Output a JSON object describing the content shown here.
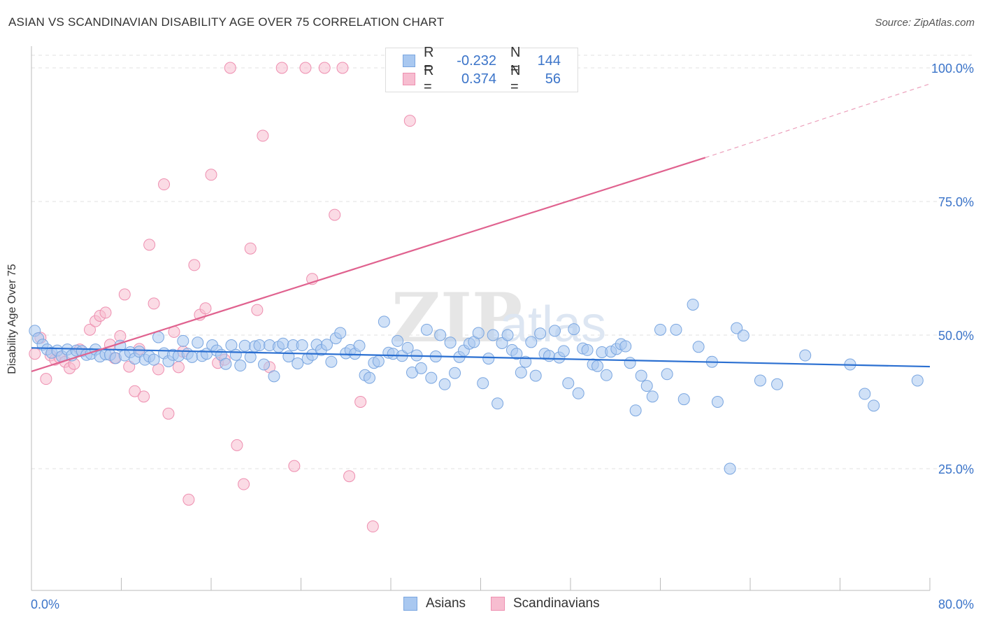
{
  "header": {
    "title": "ASIAN VS SCANDINAVIAN DISABILITY AGE OVER 75 CORRELATION CHART",
    "source": "Source: ZipAtlas.com"
  },
  "legend_stats": {
    "rows": [
      {
        "r_label": "R =",
        "r_value": "-0.232",
        "n_label": "N =",
        "n_value": "144"
      },
      {
        "r_label": "R =",
        "r_value": "0.374",
        "n_label": "N =",
        "n_value": "56"
      }
    ]
  },
  "bottom_legend": {
    "asians": "Asians",
    "scandinavians": "Scandinavians"
  },
  "colors": {
    "asian_fill": "#a9c8f0",
    "asian_stroke": "#7aa6e0",
    "asian_line": "#2a6fd1",
    "scand_fill": "#f7bdd0",
    "scand_stroke": "#ee8fb0",
    "scand_line": "#e0628f",
    "tick_label": "#3b74c9",
    "grid": "#e2e2e2"
  },
  "chart_data": {
    "type": "scatter",
    "title": "ASIAN VS SCANDINAVIAN DISABILITY AGE OVER 75 CORRELATION CHART",
    "xlabel": "",
    "ylabel": "Disability Age Over 75",
    "xlim": [
      0,
      80
    ],
    "ylim": [
      0,
      103
    ],
    "x_tick_labels": [
      "0.0%",
      "80.0%"
    ],
    "y_ticks": [
      25,
      50,
      75,
      100
    ],
    "y_tick_labels": [
      "25.0%",
      "50.0%",
      "75.0%",
      "100.0%"
    ],
    "grid": true,
    "watermark": "ZIPatlas",
    "series": [
      {
        "name": "Asians",
        "trend": {
          "x0": 0,
          "y0": 47.6,
          "x1": 80,
          "y1": 44.1
        },
        "points": [
          [
            0.3,
            50.8
          ],
          [
            0.6,
            49.4
          ],
          [
            1.0,
            48.2
          ],
          [
            1.4,
            47.3
          ],
          [
            1.8,
            46.7
          ],
          [
            2.3,
            47.1
          ],
          [
            2.7,
            46.0
          ],
          [
            3.2,
            47.3
          ],
          [
            3.6,
            46.2
          ],
          [
            4.0,
            47.1
          ],
          [
            4.5,
            47.0
          ],
          [
            4.9,
            46.3
          ],
          [
            5.3,
            46.5
          ],
          [
            5.7,
            47.3
          ],
          [
            6.1,
            46.0
          ],
          [
            6.6,
            46.4
          ],
          [
            7.0,
            46.3
          ],
          [
            7.5,
            45.7
          ],
          [
            7.9,
            48.0
          ],
          [
            8.3,
            46.2
          ],
          [
            8.8,
            46.8
          ],
          [
            9.2,
            45.6
          ],
          [
            9.6,
            46.9
          ],
          [
            10.1,
            45.4
          ],
          [
            10.5,
            46.0
          ],
          [
            10.9,
            45.4
          ],
          [
            11.3,
            49.6
          ],
          [
            11.8,
            46.6
          ],
          [
            12.2,
            45.1
          ],
          [
            12.6,
            46.3
          ],
          [
            13.1,
            46.1
          ],
          [
            13.5,
            48.9
          ],
          [
            13.9,
            46.5
          ],
          [
            14.3,
            45.9
          ],
          [
            14.8,
            48.6
          ],
          [
            15.2,
            46.1
          ],
          [
            15.6,
            46.5
          ],
          [
            16.1,
            48.1
          ],
          [
            16.5,
            47.1
          ],
          [
            16.9,
            46.3
          ],
          [
            17.3,
            44.6
          ],
          [
            17.8,
            48.1
          ],
          [
            18.2,
            46.3
          ],
          [
            18.6,
            44.3
          ],
          [
            19.0,
            48.0
          ],
          [
            19.5,
            45.9
          ],
          [
            19.9,
            47.9
          ],
          [
            20.3,
            48.1
          ],
          [
            20.7,
            44.5
          ],
          [
            21.2,
            48.1
          ],
          [
            21.6,
            42.3
          ],
          [
            22.0,
            47.8
          ],
          [
            22.4,
            48.4
          ],
          [
            22.9,
            46.0
          ],
          [
            23.3,
            48.1
          ],
          [
            23.7,
            44.7
          ],
          [
            24.1,
            48.1
          ],
          [
            24.6,
            45.6
          ],
          [
            25.0,
            46.3
          ],
          [
            25.4,
            48.2
          ],
          [
            25.8,
            47.2
          ],
          [
            26.3,
            48.2
          ],
          [
            26.7,
            45.0
          ],
          [
            27.1,
            49.4
          ],
          [
            27.5,
            50.4
          ],
          [
            28.0,
            46.6
          ],
          [
            28.4,
            47.2
          ],
          [
            28.8,
            46.5
          ],
          [
            29.2,
            48.0
          ],
          [
            29.7,
            42.5
          ],
          [
            30.1,
            42.0
          ],
          [
            30.5,
            44.8
          ],
          [
            30.9,
            45.1
          ],
          [
            31.4,
            52.5
          ],
          [
            31.8,
            46.7
          ],
          [
            32.2,
            46.5
          ],
          [
            32.6,
            48.9
          ],
          [
            33.0,
            46.1
          ],
          [
            33.5,
            47.6
          ],
          [
            33.9,
            43.0
          ],
          [
            34.3,
            46.2
          ],
          [
            34.7,
            43.8
          ],
          [
            35.2,
            51.0
          ],
          [
            35.6,
            42.0
          ],
          [
            36.0,
            46.0
          ],
          [
            36.4,
            50.0
          ],
          [
            36.8,
            40.8
          ],
          [
            37.3,
            48.6
          ],
          [
            37.7,
            42.9
          ],
          [
            38.1,
            45.9
          ],
          [
            38.5,
            47.1
          ],
          [
            39.0,
            48.4
          ],
          [
            39.4,
            48.7
          ],
          [
            39.8,
            50.4
          ],
          [
            40.2,
            41.0
          ],
          [
            40.7,
            45.6
          ],
          [
            41.1,
            50.0
          ],
          [
            41.5,
            37.2
          ],
          [
            41.9,
            48.5
          ],
          [
            42.4,
            50.0
          ],
          [
            42.8,
            47.2
          ],
          [
            43.2,
            46.5
          ],
          [
            43.6,
            43.0
          ],
          [
            44.0,
            45.0
          ],
          [
            44.5,
            48.7
          ],
          [
            44.9,
            42.4
          ],
          [
            45.3,
            50.3
          ],
          [
            45.7,
            46.5
          ],
          [
            46.1,
            46.1
          ],
          [
            46.6,
            50.8
          ],
          [
            47.0,
            45.8
          ],
          [
            47.4,
            47.0
          ],
          [
            47.8,
            41.0
          ],
          [
            48.3,
            51.1
          ],
          [
            48.7,
            39.1
          ],
          [
            49.1,
            47.5
          ],
          [
            49.5,
            47.2
          ],
          [
            50.0,
            44.5
          ],
          [
            50.4,
            44.2
          ],
          [
            50.8,
            46.8
          ],
          [
            51.2,
            42.5
          ],
          [
            51.6,
            46.9
          ],
          [
            52.1,
            47.4
          ],
          [
            52.5,
            48.3
          ],
          [
            52.9,
            47.9
          ],
          [
            53.3,
            44.8
          ],
          [
            53.8,
            35.9
          ],
          [
            54.3,
            42.4
          ],
          [
            54.8,
            40.5
          ],
          [
            55.3,
            38.5
          ],
          [
            56.0,
            51.0
          ],
          [
            56.6,
            42.7
          ],
          [
            57.4,
            51.0
          ],
          [
            58.1,
            38.0
          ],
          [
            58.9,
            55.7
          ],
          [
            59.4,
            47.8
          ],
          [
            60.6,
            45.0
          ],
          [
            61.1,
            37.5
          ],
          [
            62.2,
            25.0
          ],
          [
            62.8,
            51.3
          ],
          [
            63.4,
            49.9
          ],
          [
            64.9,
            41.5
          ],
          [
            66.4,
            40.8
          ],
          [
            68.9,
            46.2
          ],
          [
            72.9,
            44.5
          ],
          [
            74.2,
            39.0
          ],
          [
            75.0,
            36.8
          ],
          [
            78.9,
            41.5
          ]
        ]
      },
      {
        "name": "Scandinavians",
        "trend": {
          "x0": 0,
          "y0": 43.2,
          "x1": 60,
          "y1": 83.2,
          "dash_to_x": 80,
          "dash_to_y": 97.0
        },
        "points": [
          [
            0.3,
            46.5
          ],
          [
            0.8,
            49.5
          ],
          [
            1.3,
            41.8
          ],
          [
            1.7,
            46.2
          ],
          [
            2.1,
            45.4
          ],
          [
            2.5,
            45.8
          ],
          [
            3.0,
            45.0
          ],
          [
            3.4,
            43.8
          ],
          [
            3.8,
            44.6
          ],
          [
            4.3,
            47.3
          ],
          [
            5.2,
            51.0
          ],
          [
            5.7,
            52.6
          ],
          [
            6.1,
            53.6
          ],
          [
            6.6,
            54.2
          ],
          [
            7.0,
            48.2
          ],
          [
            7.4,
            45.7
          ],
          [
            7.9,
            49.8
          ],
          [
            8.3,
            57.6
          ],
          [
            8.7,
            44.1
          ],
          [
            9.2,
            39.5
          ],
          [
            9.6,
            47.4
          ],
          [
            10.0,
            38.5
          ],
          [
            10.5,
            66.9
          ],
          [
            10.9,
            55.9
          ],
          [
            11.3,
            43.6
          ],
          [
            11.8,
            78.2
          ],
          [
            12.2,
            35.3
          ],
          [
            12.7,
            50.6
          ],
          [
            13.1,
            44.0
          ],
          [
            13.5,
            46.9
          ],
          [
            14.0,
            19.2
          ],
          [
            14.5,
            63.1
          ],
          [
            15.0,
            53.8
          ],
          [
            15.5,
            55.0
          ],
          [
            16.0,
            80.0
          ],
          [
            16.6,
            44.8
          ],
          [
            17.2,
            45.4
          ],
          [
            17.7,
            100.0
          ],
          [
            18.3,
            29.4
          ],
          [
            18.9,
            22.1
          ],
          [
            19.5,
            66.2
          ],
          [
            20.1,
            54.7
          ],
          [
            20.6,
            87.3
          ],
          [
            21.2,
            44.0
          ],
          [
            22.3,
            100.0
          ],
          [
            23.4,
            25.5
          ],
          [
            24.4,
            100.0
          ],
          [
            25.0,
            60.5
          ],
          [
            26.1,
            100.0
          ],
          [
            27.0,
            72.5
          ],
          [
            27.7,
            100.0
          ],
          [
            28.3,
            23.6
          ],
          [
            29.3,
            37.5
          ],
          [
            30.4,
            14.2
          ],
          [
            33.7,
            90.1
          ],
          [
            37.1,
            100.0
          ]
        ]
      }
    ]
  }
}
